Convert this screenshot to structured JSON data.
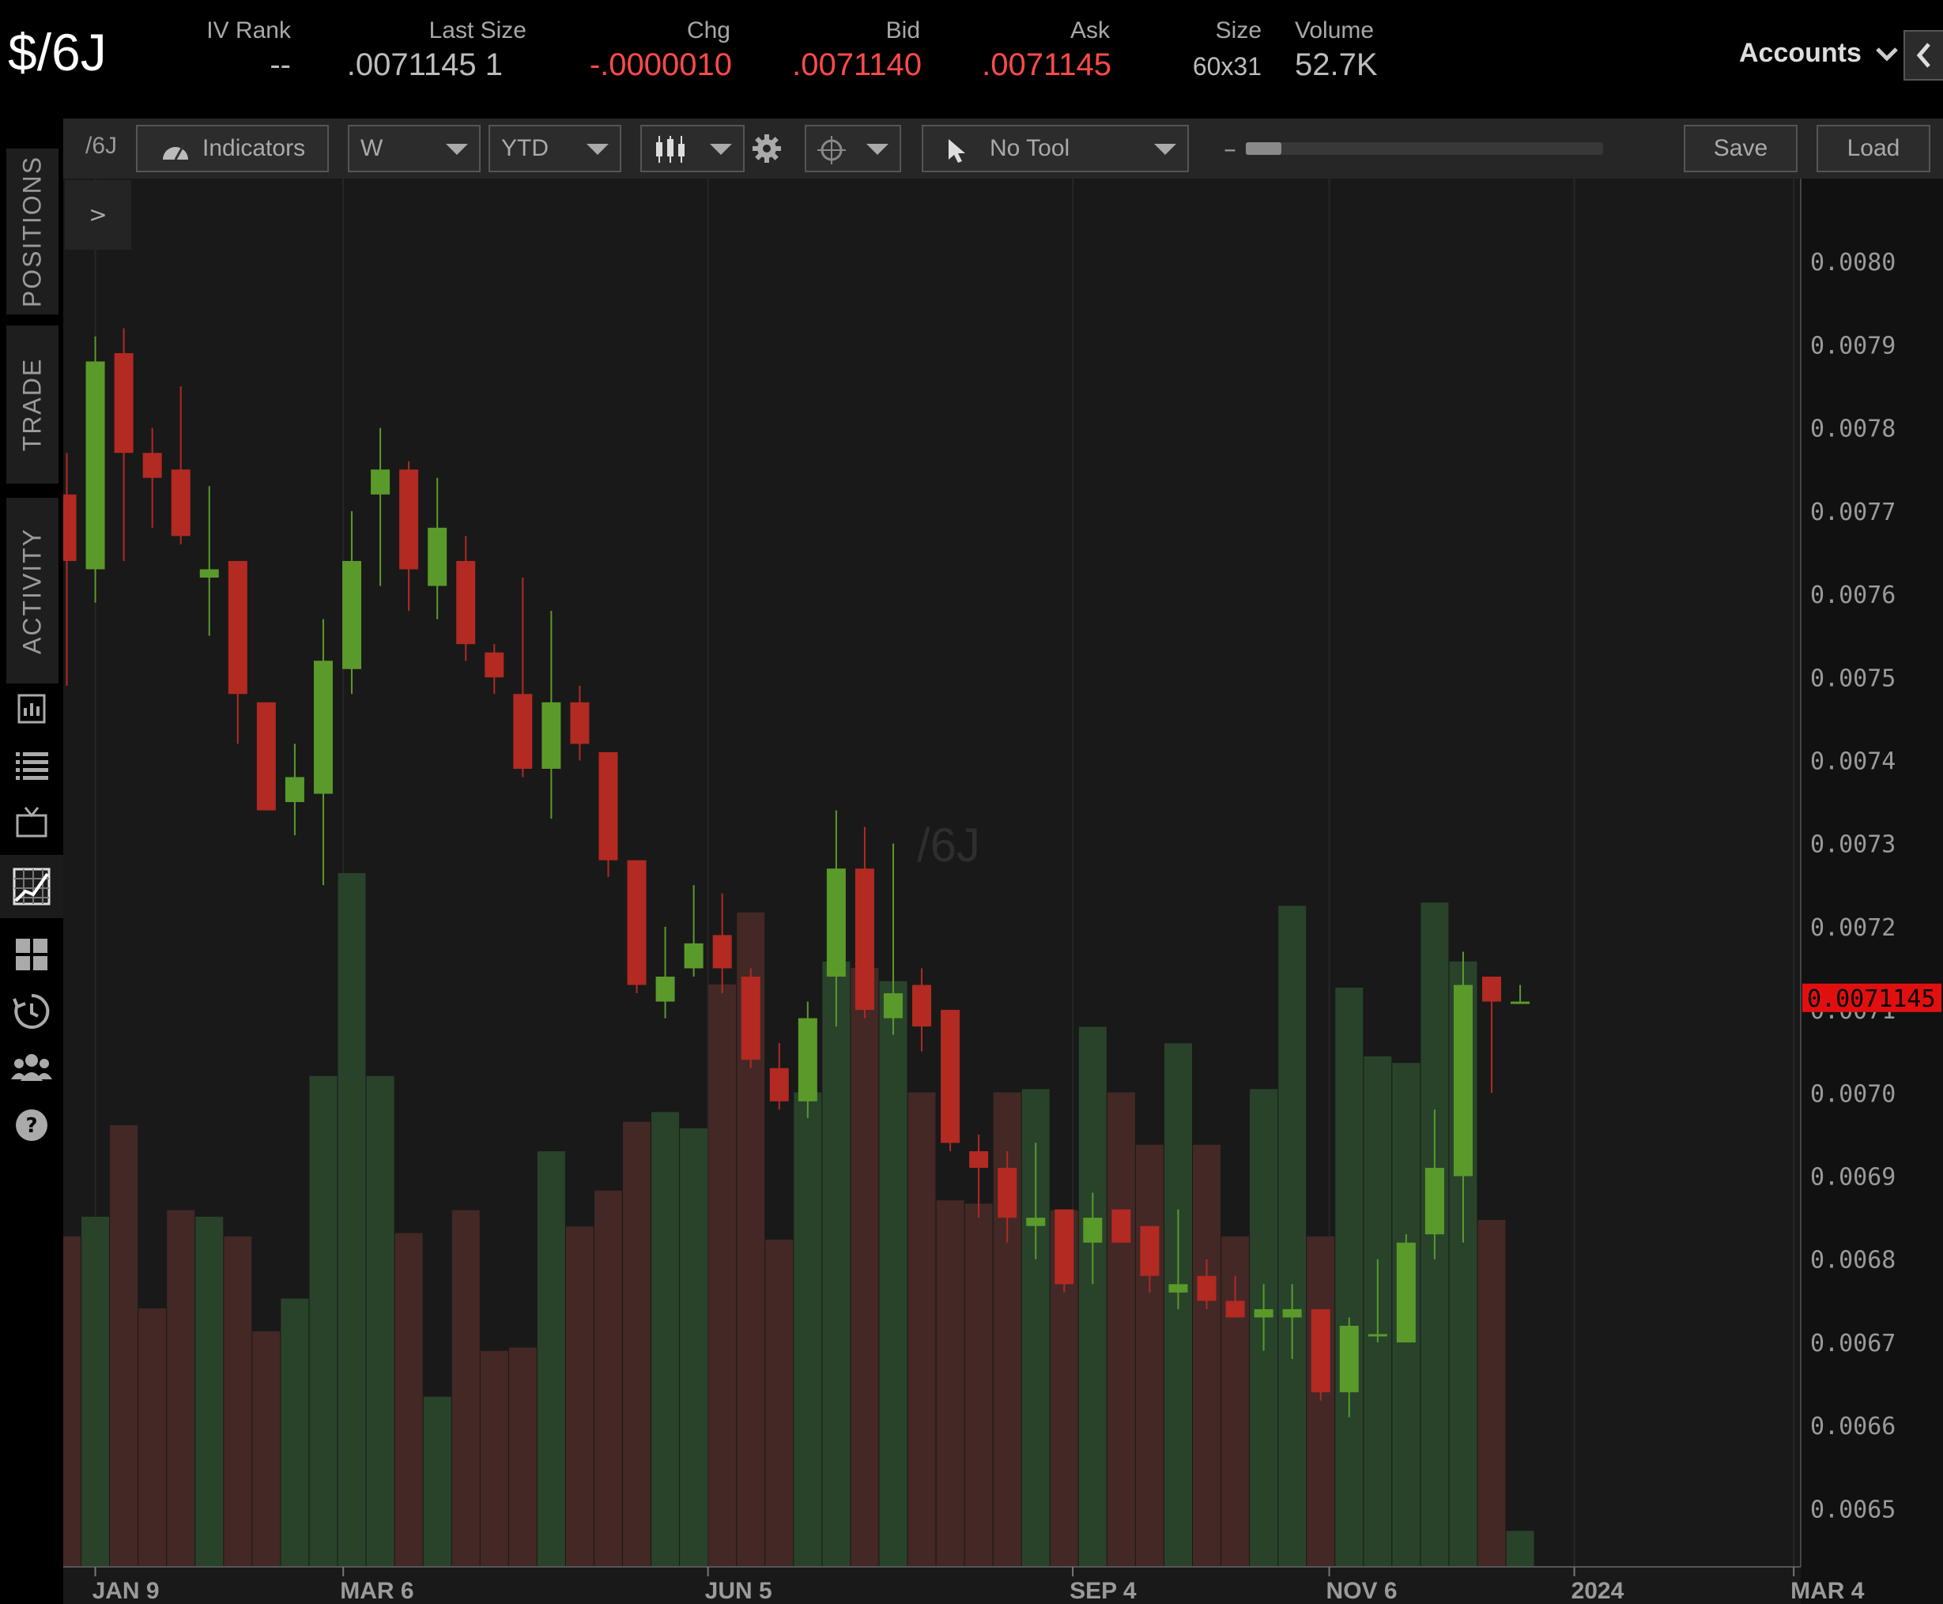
{
  "header": {
    "symbol": "$/6J",
    "quote": {
      "iv_rank": {
        "label": "IV Rank",
        "value": "--"
      },
      "last_size": {
        "label": "Last Size",
        "value": ".0071145 1"
      },
      "chg": {
        "label": "Chg",
        "value": "-.0000010"
      },
      "bid": {
        "label": "Bid",
        "value": ".0071140"
      },
      "ask": {
        "label": "Ask",
        "value": ".0071145"
      },
      "size": {
        "label": "Size",
        "value": "60x31"
      },
      "volume": {
        "label": "Volume",
        "value": "52.7K"
      }
    },
    "accounts_label": "Accounts"
  },
  "sidebar": {
    "tabs": [
      "POSITIONS",
      "TRADE",
      "ACTIVITY"
    ],
    "icons": [
      "monitor-icon",
      "list-icon",
      "tv-icon",
      "chart-icon",
      "grid-icon",
      "history-icon",
      "people-icon",
      "help-icon"
    ]
  },
  "toolbar": {
    "symbol_label": "/6J",
    "expander_label": ">",
    "indicators_label": "Indicators",
    "aggregation_value": "W",
    "range_value": "YTD",
    "drawing_tool_value": "No Tool",
    "zoom_minus": "–",
    "zoom_plus": "+",
    "zoom_level": 0.1,
    "save_label": "Save",
    "load_label": "Load"
  },
  "chart_data": {
    "type": "candlestick",
    "watermark": "/6J",
    "y_ticks": [
      "0.0080",
      "0.0079",
      "0.0078",
      "0.0077",
      "0.0076",
      "0.0075",
      "0.0074",
      "0.0073",
      "0.0072",
      "0.0071",
      "0.0070",
      "0.0069",
      "0.0068",
      "0.0067",
      "0.0066",
      "0.0065"
    ],
    "ylim": [
      0.00643,
      0.0081
    ],
    "x_ticks": [
      "JAN 9",
      "MAR 6",
      "JUN 5",
      "SEP 4",
      "NOV 6",
      "2024",
      "MAR 4"
    ],
    "x_tick_weeks": [
      1,
      9.7,
      22.5,
      35.3,
      44.3,
      52.9,
      60.6
    ],
    "xlim": [
      -0.07,
      60.9
    ],
    "last_price_label": "0.0071145",
    "last_price": 0.0071145,
    "colors": {
      "up": "#5a9a2a",
      "down": "#b22a22",
      "vol_up": "#28432a",
      "vol_down": "#432826",
      "last_price": "#e01010"
    },
    "candles": [
      {
        "o": 0.00772,
        "h": 0.00777,
        "l": 0.00749,
        "c": 0.00764,
        "v": 0.0101
      },
      {
        "o": 0.00763,
        "h": 0.00791,
        "l": 0.00759,
        "c": 0.00788,
        "v": 0.0107
      },
      {
        "o": 0.00789,
        "h": 0.00792,
        "l": 0.00764,
        "c": 0.00777,
        "v": 0.0135
      },
      {
        "o": 0.00777,
        "h": 0.0078,
        "l": 0.00768,
        "c": 0.00774,
        "v": 0.0079
      },
      {
        "o": 0.00775,
        "h": 0.00785,
        "l": 0.00766,
        "c": 0.00767,
        "v": 0.0109
      },
      {
        "o": 0.00762,
        "h": 0.00773,
        "l": 0.00755,
        "c": 0.00763,
        "v": 0.0107
      },
      {
        "o": 0.00764,
        "h": 0.00764,
        "l": 0.00742,
        "c": 0.00748,
        "v": 0.0101
      },
      {
        "o": 0.00747,
        "h": 0.00747,
        "l": 0.00734,
        "c": 0.00734,
        "v": 0.0072
      },
      {
        "o": 0.00735,
        "h": 0.00742,
        "l": 0.00731,
        "c": 0.00738,
        "v": 0.0082
      },
      {
        "o": 0.00736,
        "h": 0.00757,
        "l": 0.00725,
        "c": 0.00752,
        "v": 0.015
      },
      {
        "o": 0.00751,
        "h": 0.0077,
        "l": 0.00748,
        "c": 0.00764,
        "v": 0.0212
      },
      {
        "o": 0.00772,
        "h": 0.0078,
        "l": 0.00761,
        "c": 0.00775,
        "v": 0.015
      },
      {
        "o": 0.00775,
        "h": 0.00776,
        "l": 0.00758,
        "c": 0.00763,
        "v": 0.0102
      },
      {
        "o": 0.00761,
        "h": 0.00774,
        "l": 0.00757,
        "c": 0.00768,
        "v": 0.0052
      },
      {
        "o": 0.00764,
        "h": 0.00767,
        "l": 0.00752,
        "c": 0.00754,
        "v": 0.0109
      },
      {
        "o": 0.00753,
        "h": 0.00754,
        "l": 0.00748,
        "c": 0.0075,
        "v": 0.0066
      },
      {
        "o": 0.00748,
        "h": 0.00762,
        "l": 0.00738,
        "c": 0.00739,
        "v": 0.0067
      },
      {
        "o": 0.00739,
        "h": 0.00758,
        "l": 0.00733,
        "c": 0.00747,
        "v": 0.0127
      },
      {
        "o": 0.00747,
        "h": 0.00749,
        "l": 0.0074,
        "c": 0.00742,
        "v": 0.0104
      },
      {
        "o": 0.00741,
        "h": 0.00741,
        "l": 0.00726,
        "c": 0.00728,
        "v": 0.0115
      },
      {
        "o": 0.00728,
        "h": 0.00728,
        "l": 0.00712,
        "c": 0.00713,
        "v": 0.0136
      },
      {
        "o": 0.00711,
        "h": 0.0072,
        "l": 0.00709,
        "c": 0.00714,
        "v": 0.0139
      },
      {
        "o": 0.00715,
        "h": 0.00725,
        "l": 0.00714,
        "c": 0.00718,
        "v": 0.0134
      },
      {
        "o": 0.00719,
        "h": 0.00724,
        "l": 0.00712,
        "c": 0.00715,
        "v": 0.0178
      },
      {
        "o": 0.00714,
        "h": 0.00715,
        "l": 0.00703,
        "c": 0.00704,
        "v": 0.02
      },
      {
        "o": 0.00703,
        "h": 0.00706,
        "l": 0.00698,
        "c": 0.00699,
        "v": 0.01
      },
      {
        "o": 0.00699,
        "h": 0.00711,
        "l": 0.00697,
        "c": 0.00709,
        "v": 0.0145
      },
      {
        "o": 0.00714,
        "h": 0.00734,
        "l": 0.00708,
        "c": 0.00727,
        "v": 0.0185
      },
      {
        "o": 0.00727,
        "h": 0.00732,
        "l": 0.00709,
        "c": 0.0071,
        "v": 0.0183
      },
      {
        "o": 0.00709,
        "h": 0.0073,
        "l": 0.00707,
        "c": 0.00712,
        "v": 0.0179
      },
      {
        "o": 0.00713,
        "h": 0.00715,
        "l": 0.00705,
        "c": 0.00708,
        "v": 0.0145
      },
      {
        "o": 0.0071,
        "h": 0.0071,
        "l": 0.00693,
        "c": 0.00694,
        "v": 0.0112
      },
      {
        "o": 0.00693,
        "h": 0.00695,
        "l": 0.00685,
        "c": 0.00691,
        "v": 0.0111
      },
      {
        "o": 0.00691,
        "h": 0.00693,
        "l": 0.00682,
        "c": 0.00685,
        "v": 0.0145
      },
      {
        "o": 0.00684,
        "h": 0.00694,
        "l": 0.0068,
        "c": 0.00685,
        "v": 0.0146
      },
      {
        "o": 0.00686,
        "h": 0.00686,
        "l": 0.00676,
        "c": 0.00677,
        "v": 0.0109
      },
      {
        "o": 0.00682,
        "h": 0.00688,
        "l": 0.00677,
        "c": 0.00685,
        "v": 0.0165
      },
      {
        "o": 0.00686,
        "h": 0.00686,
        "l": 0.00682,
        "c": 0.00682,
        "v": 0.0145
      },
      {
        "o": 0.00684,
        "h": 0.00684,
        "l": 0.00676,
        "c": 0.00678,
        "v": 0.0129
      },
      {
        "o": 0.00676,
        "h": 0.00686,
        "l": 0.00674,
        "c": 0.00677,
        "v": 0.016
      },
      {
        "o": 0.00678,
        "h": 0.0068,
        "l": 0.00674,
        "c": 0.00675,
        "v": 0.0129
      },
      {
        "o": 0.00675,
        "h": 0.00678,
        "l": 0.00673,
        "c": 0.00673,
        "v": 0.0101
      },
      {
        "o": 0.00673,
        "h": 0.00677,
        "l": 0.00669,
        "c": 0.00674,
        "v": 0.0146
      },
      {
        "o": 0.00673,
        "h": 0.00677,
        "l": 0.00668,
        "c": 0.00674,
        "v": 0.0202
      },
      {
        "o": 0.00674,
        "h": 0.00674,
        "l": 0.00663,
        "c": 0.00664,
        "v": 0.0101
      },
      {
        "o": 0.00664,
        "h": 0.00673,
        "l": 0.00661,
        "c": 0.00672,
        "v": 0.0177
      },
      {
        "o": 0.00671,
        "h": 0.0068,
        "l": 0.0067,
        "c": 0.00671,
        "v": 0.0156
      },
      {
        "o": 0.0067,
        "h": 0.00683,
        "l": 0.0067,
        "c": 0.00682,
        "v": 0.0154
      },
      {
        "o": 0.00683,
        "h": 0.00698,
        "l": 0.0068,
        "c": 0.00691,
        "v": 0.0203
      },
      {
        "o": 0.0069,
        "h": 0.00717,
        "l": 0.00682,
        "c": 0.00713,
        "v": 0.0185
      },
      {
        "o": 0.00714,
        "h": 0.00714,
        "l": 0.007,
        "c": 0.00711,
        "v": 0.0106
      },
      {
        "o": 0.00711,
        "h": 0.00713,
        "l": 0.00711,
        "c": 0.00711,
        "v": 0.0011
      }
    ]
  }
}
